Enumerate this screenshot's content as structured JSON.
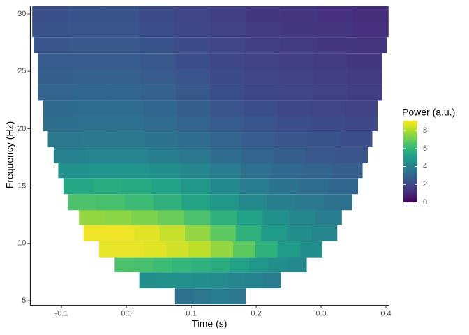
{
  "chart_data": {
    "type": "heatmap",
    "x_label": "Time (s)",
    "y_label": "Frequency (Hz)",
    "legend_title": "Power (a.u.)",
    "xlim": [
      -0.148,
      0.405
    ],
    "ylim": [
      4.6,
      30.7
    ],
    "xticks": [
      -0.1,
      {
        "value": 0,
        "label": "0.0"
      },
      0.1,
      0.2,
      0.3,
      0.4
    ],
    "yticks": [
      5,
      10,
      15,
      20,
      25,
      30
    ],
    "row_height": 1.37,
    "color_limits": [
      0,
      9.1
    ],
    "color_ticks": [
      0,
      2,
      4,
      6,
      8
    ],
    "colorscale": [
      "#440154",
      "#482878",
      "#3e4989",
      "#31688e",
      "#26828e",
      "#1f9e89",
      "#35b779",
      "#6ece58",
      "#b5de2b",
      "#fde725"
    ],
    "rows": [
      {
        "frequency": 5.4,
        "time_range": [
          0.075,
          0.184
        ],
        "values": [
          3.4,
          3.6,
          3.8,
          3.7
        ]
      },
      {
        "frequency": 6.8,
        "time_range": [
          0.02,
          0.238
        ],
        "values": [
          4.5,
          4.6,
          4.6,
          4.5,
          4.4,
          4.2,
          4.0,
          3.8
        ]
      },
      {
        "frequency": 8.2,
        "time_range": [
          -0.018,
          0.278
        ],
        "values": [
          6.5,
          6.4,
          6.2,
          6.0,
          5.8,
          5.6,
          5.2,
          4.8,
          4.5,
          4.3
        ]
      },
      {
        "frequency": 9.5,
        "time_range": [
          -0.042,
          0.302
        ],
        "values": [
          8.8,
          8.8,
          8.7,
          8.5,
          8.2,
          7.6,
          6.8,
          5.8,
          5.0,
          4.5
        ]
      },
      {
        "frequency": 10.9,
        "time_range": [
          -0.066,
          0.325
        ],
        "values": [
          8.9,
          8.9,
          8.7,
          8.3,
          7.6,
          6.8,
          5.8,
          5.0,
          4.5,
          4.2
        ]
      },
      {
        "frequency": 12.3,
        "time_range": [
          -0.073,
          0.332
        ],
        "values": [
          7.6,
          7.5,
          7.3,
          7.0,
          6.5,
          5.8,
          5.2,
          4.6,
          4.2,
          3.9
        ]
      },
      {
        "frequency": 13.6,
        "time_range": [
          -0.09,
          0.348
        ],
        "values": [
          6.5,
          6.4,
          6.2,
          5.8,
          5.3,
          4.8,
          4.3,
          3.9,
          3.6,
          3.4
        ]
      },
      {
        "frequency": 15.0,
        "time_range": [
          -0.097,
          0.357
        ],
        "values": [
          5.4,
          5.6,
          5.5,
          5.2,
          4.8,
          4.3,
          3.9,
          3.5,
          3.2,
          3.0
        ]
      },
      {
        "frequency": 16.4,
        "time_range": [
          -0.105,
          0.364
        ],
        "values": [
          4.6,
          4.7,
          4.7,
          4.5,
          4.2,
          3.8,
          3.4,
          3.1,
          2.9,
          2.7
        ]
      },
      {
        "frequency": 17.7,
        "time_range": [
          -0.112,
          0.372
        ],
        "values": [
          4.0,
          4.1,
          4.1,
          3.9,
          3.6,
          3.2,
          2.9,
          2.7,
          2.5,
          2.4
        ]
      },
      {
        "frequency": 19.1,
        "time_range": [
          -0.121,
          0.379
        ],
        "values": [
          3.6,
          3.7,
          3.7,
          3.5,
          3.2,
          2.9,
          2.6,
          2.4,
          2.3,
          2.2
        ]
      },
      {
        "frequency": 20.5,
        "time_range": [
          -0.128,
          0.387
        ],
        "values": [
          3.3,
          3.4,
          3.4,
          3.2,
          2.9,
          2.6,
          2.4,
          2.2,
          2.1,
          2.0
        ]
      },
      {
        "frequency": 21.8,
        "time_range": [
          -0.128,
          0.387
        ],
        "values": [
          3.1,
          3.2,
          3.2,
          3.0,
          2.7,
          2.4,
          2.2,
          2.0,
          1.9,
          1.8
        ]
      },
      {
        "frequency": 23.2,
        "time_range": [
          -0.136,
          0.394
        ],
        "values": [
          2.9,
          3.0,
          3.0,
          2.8,
          2.5,
          2.2,
          2.0,
          1.9,
          1.8,
          1.7
        ]
      },
      {
        "frequency": 24.6,
        "time_range": [
          -0.136,
          0.394
        ],
        "values": [
          2.7,
          2.8,
          2.8,
          2.6,
          2.4,
          2.1,
          1.9,
          1.8,
          1.7,
          1.6
        ]
      },
      {
        "frequency": 25.9,
        "time_range": [
          -0.136,
          0.394
        ],
        "values": [
          2.6,
          2.6,
          2.6,
          2.5,
          2.2,
          2.0,
          1.8,
          1.7,
          1.6,
          1.5
        ]
      },
      {
        "frequency": 27.3,
        "time_range": [
          -0.143,
          0.401
        ],
        "values": [
          2.4,
          2.5,
          2.5,
          2.3,
          2.1,
          1.9,
          1.7,
          1.6,
          1.5,
          1.4
        ]
      },
      {
        "frequency": 28.7,
        "time_range": [
          -0.145,
          0.404
        ],
        "values": [
          2.3,
          2.4,
          2.4,
          2.2,
          2.0,
          1.8,
          1.6,
          1.5,
          1.4,
          1.3
        ]
      },
      {
        "frequency": 30.0,
        "time_range": [
          -0.145,
          0.404
        ],
        "values": [
          2.2,
          2.3,
          2.3,
          2.1,
          1.9,
          1.7,
          1.5,
          1.4,
          1.3,
          1.2
        ]
      }
    ]
  }
}
